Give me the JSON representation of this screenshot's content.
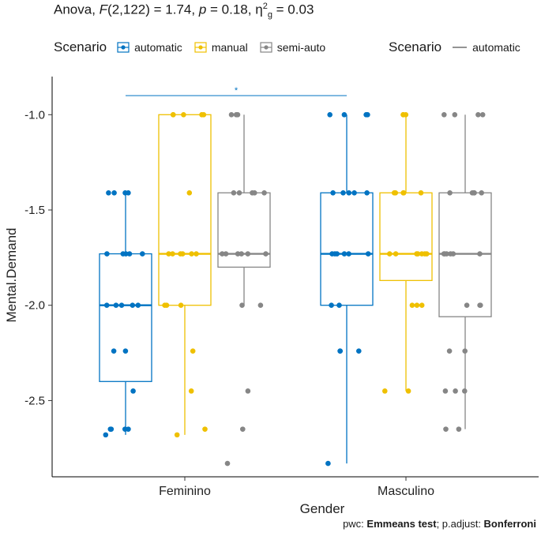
{
  "title": {
    "prefix": "Anova, ",
    "stat_symbol": "F",
    "df": "(2,122) = 1.74, ",
    "p_symbol": "p",
    "p_value": " = 0.18, ",
    "eta_symbol": "η",
    "eta_sup": "2",
    "eta_sub": "g",
    "eta_value": " = 0.03"
  },
  "legend_box": {
    "title": "Scenario",
    "items": [
      {
        "label": "automatic",
        "color": "#0073C2"
      },
      {
        "label": "manual",
        "color": "#EFC000"
      },
      {
        "label": "semi-auto",
        "color": "#868686"
      }
    ]
  },
  "legend_line": {
    "title": "Scenario",
    "items": [
      {
        "label": "automatic"
      }
    ]
  },
  "caption": {
    "pwc_label": "pwc: ",
    "pwc_value": "Emmeans test",
    "sep": "; p.adjust: ",
    "adjust_value": "Bonferroni"
  },
  "chart_data": {
    "type": "boxplot",
    "xlabel": "Gender",
    "ylabel": "Mental.Demand",
    "categories": [
      "Feminino",
      "Masculino"
    ],
    "ylim": [
      -2.9,
      -0.8
    ],
    "yticks": [
      -1.0,
      -1.5,
      -2.0,
      -2.5
    ],
    "ytick_labels": [
      "-1.0",
      "-1.5",
      "-2.0",
      "-2.5"
    ],
    "series": [
      {
        "name": "automatic",
        "color": "#0073C2",
        "boxes": [
          {
            "category": "Feminino",
            "min": -2.68,
            "q1": -2.4,
            "median": -2.0,
            "q3": -1.73,
            "max": -1.41,
            "points": [
              -1.41,
              -1.41,
              -1.41,
              -1.41,
              -1.73,
              -1.73,
              -1.73,
              -1.73,
              -1.73,
              -2.0,
              -2.0,
              -2.0,
              -2.0,
              -2.0,
              -2.24,
              -2.24,
              -2.45,
              -2.65,
              -2.65,
              -2.65,
              -2.65,
              -2.68
            ]
          },
          {
            "category": "Masculino",
            "min": -2.83,
            "q1": -2.0,
            "median": -1.73,
            "q3": -1.41,
            "max": -1.0,
            "points": [
              -1.0,
              -1.0,
              -1.0,
              -1.0,
              -1.41,
              -1.41,
              -1.41,
              -1.41,
              -1.41,
              -1.73,
              -1.73,
              -1.73,
              -1.73,
              -1.73,
              -1.73,
              -2.0,
              -2.0,
              -2.24,
              -2.24,
              -2.24,
              -2.83
            ]
          }
        ]
      },
      {
        "name": "manual",
        "color": "#EFC000",
        "boxes": [
          {
            "category": "Feminino",
            "min": -2.68,
            "q1": -2.0,
            "median": -1.73,
            "q3": -1.0,
            "max": -1.0,
            "points": [
              -1.0,
              -1.0,
              -1.0,
              -1.0,
              -1.0,
              -1.41,
              -1.73,
              -1.73,
              -1.73,
              -1.73,
              -1.73,
              -1.73,
              -2.0,
              -2.0,
              -2.0,
              -2.24,
              -2.45,
              -2.65,
              -2.68
            ]
          },
          {
            "category": "Masculino",
            "min": -2.45,
            "q1": -1.87,
            "median": -1.73,
            "q3": -1.41,
            "max": -1.0,
            "points": [
              -1.0,
              -1.0,
              -1.0,
              -1.41,
              -1.41,
              -1.41,
              -1.41,
              -1.41,
              -1.73,
              -1.73,
              -1.73,
              -1.73,
              -1.73,
              -1.73,
              -1.73,
              -2.0,
              -2.0,
              -2.0,
              -2.45,
              -2.45
            ]
          }
        ]
      },
      {
        "name": "semi-auto",
        "color": "#868686",
        "boxes": [
          {
            "category": "Feminino",
            "min": -2.0,
            "q1": -1.8,
            "median": -1.73,
            "q3": -1.41,
            "max": -1.0,
            "points": [
              -1.0,
              -1.0,
              -1.0,
              -1.41,
              -1.41,
              -1.41,
              -1.41,
              -1.41,
              -1.73,
              -1.73,
              -1.73,
              -1.73,
              -1.73,
              -1.73,
              -2.0,
              -2.0,
              -2.45,
              -2.65,
              -2.83
            ]
          },
          {
            "category": "Masculino",
            "min": -2.65,
            "q1": -2.06,
            "median": -1.73,
            "q3": -1.41,
            "max": -1.0,
            "points": [
              -1.0,
              -1.0,
              -1.0,
              -1.0,
              -1.41,
              -1.41,
              -1.41,
              -1.41,
              -1.41,
              -1.73,
              -1.73,
              -1.73,
              -1.73,
              -1.73,
              -1.73,
              -2.0,
              -2.0,
              -2.0,
              -2.24,
              -2.24,
              -2.45,
              -2.45,
              -2.45,
              -2.65,
              -2.65
            ]
          }
        ]
      }
    ],
    "annotations": [
      {
        "type": "significance_bracket",
        "series": "automatic",
        "from": "Feminino",
        "to": "Masculino",
        "y": -0.9,
        "label": "*"
      }
    ]
  }
}
